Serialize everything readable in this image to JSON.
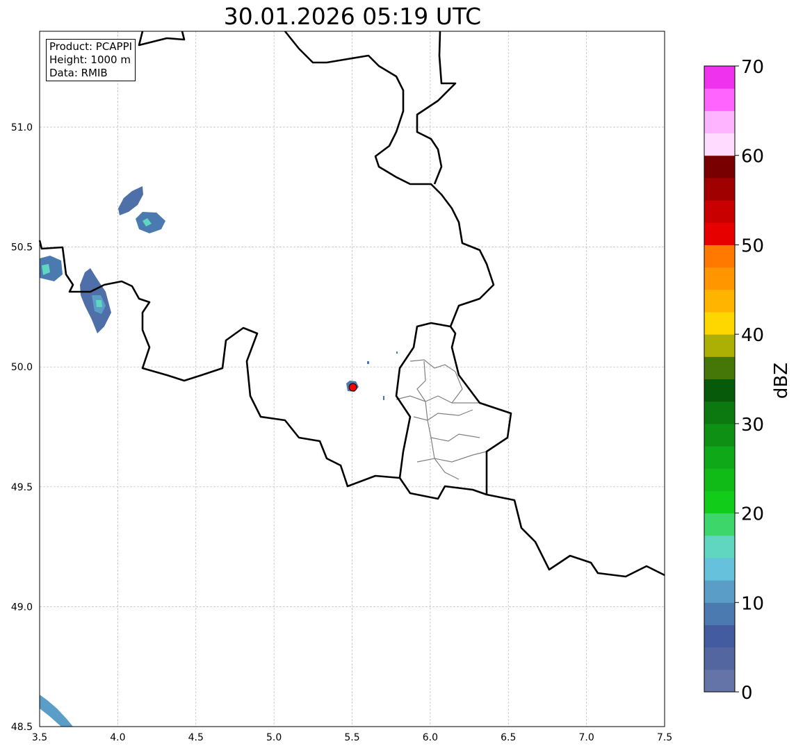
{
  "title": "30.01.2026 05:19 UTC",
  "info": {
    "product": "Product: PCAPPI",
    "height": "Height: 1000 m",
    "data": "Data: RMIB"
  },
  "chart_data": {
    "type": "heatmap",
    "title": "30.01.2026 05:19 UTC",
    "xlim": [
      3.5,
      7.5
    ],
    "ylim": [
      48.5,
      51.4
    ],
    "xticks": [
      "3.5",
      "4.0",
      "4.5",
      "5.0",
      "5.5",
      "6.0",
      "6.5",
      "7.0",
      "7.5"
    ],
    "yticks": [
      "48.5",
      "49.0",
      "49.5",
      "50.0",
      "50.5",
      "51.0"
    ],
    "grid": true,
    "radar_site": {
      "lon": 5.505,
      "lat": 49.915,
      "color": "#ff0000"
    },
    "colorbar": {
      "label": "dBZ",
      "range": [
        0,
        70
      ],
      "step": 2.5,
      "ticks": [
        "0",
        "10",
        "20",
        "30",
        "40",
        "50",
        "60",
        "70"
      ],
      "colors": [
        "#6474a8",
        "#5366a0",
        "#425c9f",
        "#4b7ab0",
        "#5a9ec8",
        "#66c2dc",
        "#60d6c0",
        "#3cd66a",
        "#12cc1a",
        "#10bb18",
        "#0fa818",
        "#0e9014",
        "#0b7810",
        "#065a0a",
        "#447608",
        "#acaf04",
        "#ffd700",
        "#ffb400",
        "#ff9600",
        "#ff7800",
        "#e60000",
        "#c80000",
        "#a00000",
        "#780000",
        "#ffdcff",
        "#ffb4ff",
        "#ff64ff",
        "#ee32ee"
      ]
    }
  }
}
